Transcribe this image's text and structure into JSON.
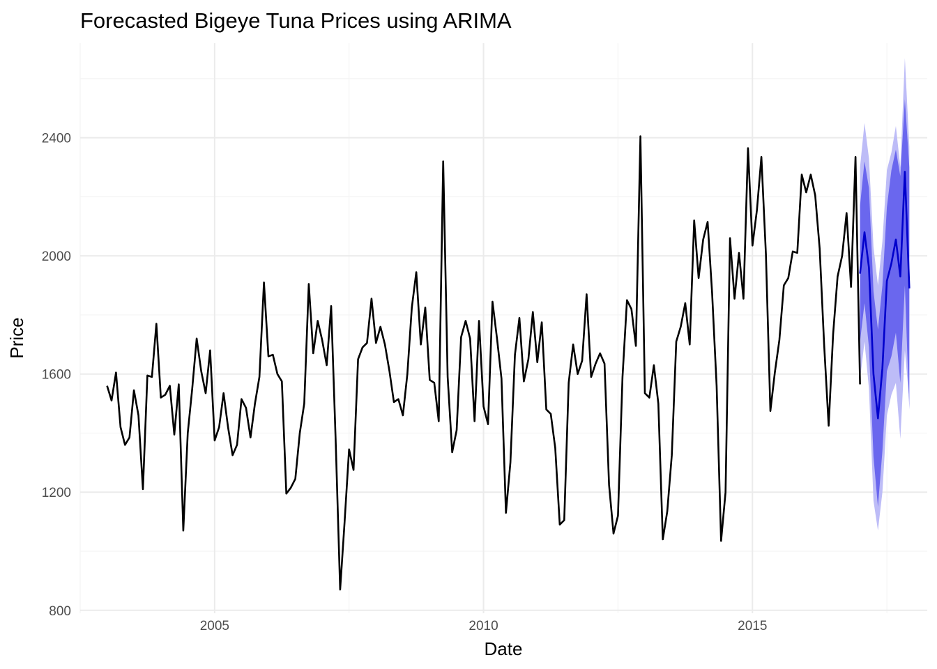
{
  "chart_data": {
    "type": "line",
    "title": "Forecasted Bigeye Tuna Prices using ARIMA",
    "xlabel": "Date",
    "ylabel": "Price",
    "x_ticks": [
      "2005",
      "2010",
      "2015"
    ],
    "y_ticks": [
      "800",
      "1200",
      "1600",
      "2000",
      "2400"
    ],
    "xlim": [
      2002.5,
      2018.25
    ],
    "ylim": [
      790,
      2720
    ],
    "grid": true,
    "legend": "none",
    "colors": {
      "observed": "#000000",
      "forecast": "#0000cc",
      "band80": "#6a67ee",
      "band95": "#bdbcf7",
      "grid_major": "#ebebeb",
      "grid_minor": "#f4f4f4"
    },
    "series": [
      {
        "start": 2003.0,
        "step": 0.08333333,
        "values": [
          1560,
          1510,
          1605,
          1420,
          1360,
          1385,
          1545,
          1460,
          1210,
          1595,
          1590,
          1770,
          1520,
          1530,
          1560,
          1395,
          1565,
          1070,
          1400,
          1550,
          1720,
          1610,
          1535,
          1680,
          1375,
          1420,
          1535,
          1420,
          1325,
          1360,
          1515,
          1485,
          1385,
          1500,
          1590,
          1910,
          1660,
          1665,
          1600,
          1575,
          1195,
          1215,
          1245,
          1400,
          1500,
          1905,
          1670,
          1780,
          1715,
          1630,
          1830,
          1380,
          870,
          1100,
          1345,
          1275,
          1650,
          1690,
          1705,
          1855,
          1705,
          1760,
          1700,
          1610,
          1505,
          1515,
          1460,
          1600,
          1825,
          1945,
          1700,
          1825,
          1580,
          1570,
          1440,
          2320,
          1590,
          1335,
          1410,
          1725,
          1780,
          1720,
          1440,
          1780,
          1490,
          1430,
          1845,
          1720,
          1585,
          1130,
          1300,
          1665,
          1790,
          1575,
          1650,
          1810,
          1640,
          1775,
          1480,
          1465,
          1350,
          1090,
          1105,
          1570,
          1700,
          1600,
          1645,
          1870,
          1590,
          1635,
          1670,
          1635,
          1225,
          1060,
          1120,
          1590,
          1850,
          1820,
          1695,
          2405,
          1535,
          1520,
          1630,
          1500,
          1040,
          1135,
          1325,
          1710,
          1760,
          1840,
          1700,
          2120,
          1925,
          2055,
          2115,
          1875,
          1560,
          1035,
          1200,
          2060,
          1855,
          2010,
          1855,
          2365,
          2035,
          2155,
          2335,
          2005,
          1475,
          1605,
          1715,
          1900,
          1925,
          2015,
          2010,
          2275,
          2215,
          2275,
          2205,
          2025,
          1700,
          1425,
          1735,
          1930,
          2000,
          2145,
          1895,
          2335,
          1565
        ]
      },
      {
        "start": 2017.0,
        "step": 0.08333333,
        "values": [
          1940,
          2080,
          1960,
          1600,
          1450,
          1620,
          1915,
          1975,
          2055,
          1930,
          2285,
          1890
        ],
        "lo80": [
          1710,
          1840,
          1690,
          1320,
          1150,
          1340,
          1610,
          1660,
          1740,
          1570,
          1900,
          1480
        ],
        "hi80": [
          2170,
          2320,
          2230,
          1880,
          1750,
          1900,
          2165,
          2290,
          2360,
          2270,
          2530,
          2300
        ],
        "lo95": [
          1580,
          1710,
          1550,
          1170,
          1070,
          1200,
          1460,
          1530,
          1570,
          1380,
          1680,
          1510
        ],
        "hi95": [
          2300,
          2450,
          2330,
          2030,
          1900,
          2050,
          2290,
          2350,
          2440,
          2300,
          2670,
          2370
        ]
      }
    ]
  }
}
